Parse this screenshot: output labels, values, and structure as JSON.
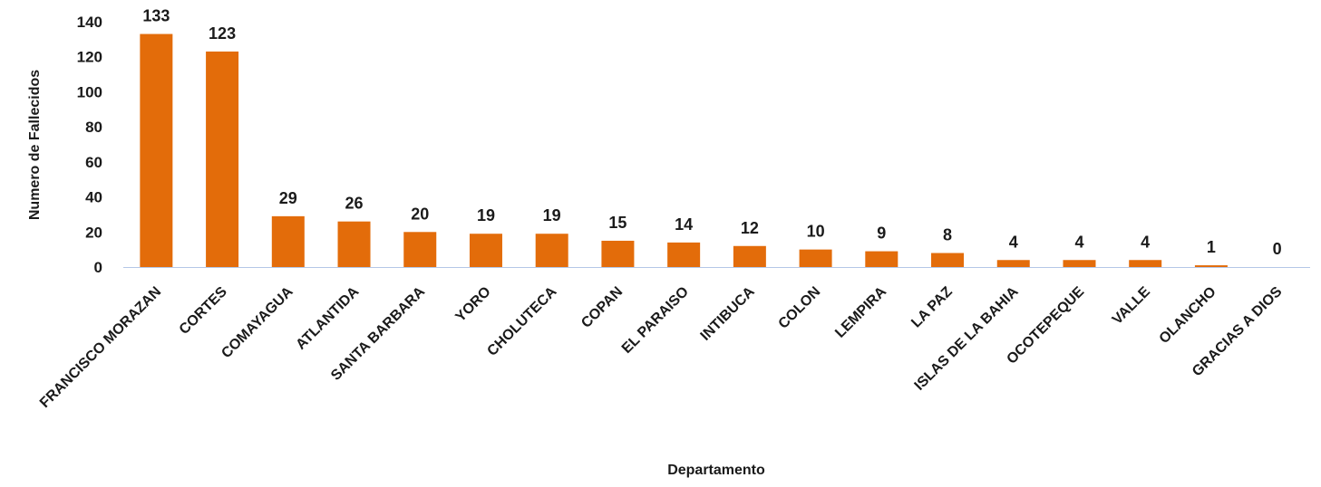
{
  "chart_data": {
    "type": "bar",
    "title": "",
    "xlabel": "Departamento",
    "ylabel": "Numero de Fallecidos",
    "categories": [
      "FRANCISCO MORAZAN",
      "CORTES",
      "COMAYAGUA",
      "ATLANTIDA",
      "SANTA BARBARA",
      "YORO",
      "CHOLUTECA",
      "COPAN",
      "EL PARAISO",
      "INTIBUCA",
      "COLON",
      "LEMPIRA",
      "LA PAZ",
      "ISLAS DE LA BAHIA",
      "OCOTEPEQUE",
      "VALLE",
      "OLANCHO",
      "GRACIAS A DIOS"
    ],
    "values": [
      133,
      123,
      29,
      26,
      20,
      19,
      19,
      15,
      14,
      12,
      10,
      9,
      8,
      4,
      4,
      4,
      1,
      0
    ],
    "ylim": [
      0,
      140
    ],
    "yticks": [
      0,
      20,
      40,
      60,
      80,
      100,
      120,
      140
    ],
    "grid": false,
    "legend": "none",
    "bar_color": "#E36C0A",
    "axis_color": "#B4C7E7"
  }
}
